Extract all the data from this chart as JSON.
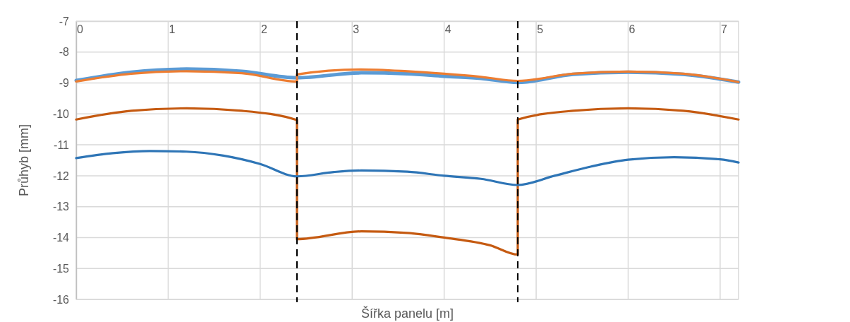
{
  "chart_data": {
    "type": "line",
    "xlabel": "Šířka panelu [m]",
    "ylabel": "Průhyb [mm]",
    "xlim": [
      0,
      7.2
    ],
    "xticks": [
      0,
      1,
      2,
      3,
      4,
      5,
      6,
      7
    ],
    "ylim": [
      -16,
      -7
    ],
    "yticks": [
      -16,
      -15,
      -14,
      -13,
      -12,
      -11,
      -10,
      -9,
      -8,
      -7
    ],
    "grid": true,
    "marker": "none",
    "line_style": "solid",
    "ref_lines": [
      {
        "axis": "x",
        "value": 2.4,
        "color": "#000000",
        "line_style": "dashed"
      },
      {
        "axis": "x",
        "value": 4.8,
        "color": "#000000",
        "line_style": "dashed"
      }
    ],
    "series": [
      {
        "color": "#5b9bd5",
        "x": [
          0,
          0.6,
          1.2,
          1.8,
          2.4,
          2.4,
          3.1,
          3.6,
          4.0,
          4.4,
          4.8,
          4.8,
          5.4,
          6.0,
          6.6,
          7.2
        ],
        "values": [
          -8.92,
          -8.65,
          -8.55,
          -8.62,
          -8.83,
          -8.83,
          -8.67,
          -8.7,
          -8.78,
          -8.85,
          -8.98,
          -8.98,
          -8.72,
          -8.65,
          -8.72,
          -8.97
        ]
      },
      {
        "color": "#ed7d31",
        "x": [
          0,
          0.6,
          1.2,
          1.8,
          2.4,
          2.4,
          3.1,
          3.6,
          4.0,
          4.4,
          4.8,
          4.8,
          5.4,
          6.0,
          6.6,
          7.2
        ],
        "values": [
          -8.95,
          -8.7,
          -8.62,
          -8.68,
          -8.95,
          -8.72,
          -8.56,
          -8.62,
          -8.7,
          -8.8,
          -8.93,
          -8.93,
          -8.7,
          -8.63,
          -8.7,
          -8.97
        ]
      },
      {
        "color": "#c55a11",
        "x": [
          0,
          0.6,
          1.2,
          1.8,
          2.4,
          2.4,
          3.1,
          3.6,
          4.0,
          4.5,
          4.8,
          4.8,
          5.4,
          6.0,
          6.6,
          7.2
        ],
        "values": [
          -10.18,
          -9.9,
          -9.82,
          -9.9,
          -10.2,
          -14.05,
          -13.8,
          -13.85,
          -14.0,
          -14.25,
          -14.55,
          -10.18,
          -9.9,
          -9.82,
          -9.9,
          -10.18
        ]
      },
      {
        "color": "#2e75b6",
        "x": [
          0,
          0.4,
          0.8,
          1.2,
          1.6,
          2.0,
          2.4,
          2.8,
          3.1,
          3.6,
          4.0,
          4.4,
          4.8,
          5.2,
          5.6,
          6.0,
          6.5,
          7.0,
          7.2
        ],
        "values": [
          -11.43,
          -11.27,
          -11.2,
          -11.22,
          -11.35,
          -11.62,
          -12.02,
          -11.88,
          -11.83,
          -11.87,
          -12.0,
          -12.1,
          -12.3,
          -12.0,
          -11.7,
          -11.48,
          -11.4,
          -11.47,
          -11.57
        ]
      }
    ]
  }
}
